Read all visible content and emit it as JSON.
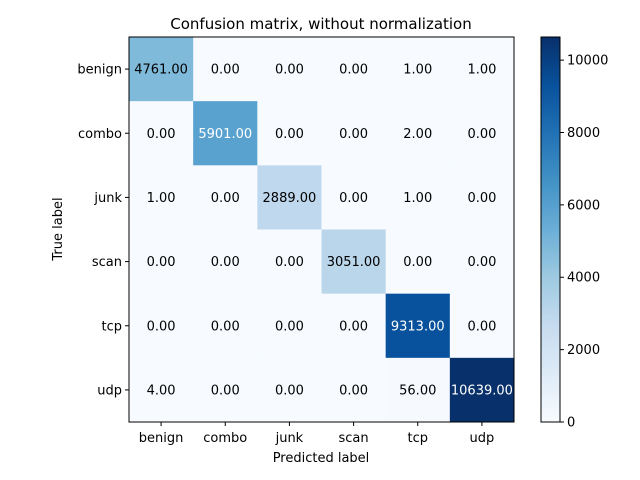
{
  "chart_data": {
    "type": "heatmap",
    "title": "Confusion matrix, without normalization",
    "xlabel": "Predicted label",
    "ylabel": "True label",
    "x_categories": [
      "benign",
      "combo",
      "junk",
      "scan",
      "tcp",
      "udp"
    ],
    "y_categories": [
      "benign",
      "combo",
      "junk",
      "scan",
      "tcp",
      "udp"
    ],
    "values": [
      [
        4761,
        0,
        0,
        0,
        1,
        1
      ],
      [
        0,
        5901,
        0,
        0,
        2,
        0
      ],
      [
        1,
        0,
        2889,
        0,
        1,
        0
      ],
      [
        0,
        0,
        0,
        3051,
        0,
        0
      ],
      [
        0,
        0,
        0,
        0,
        9313,
        0
      ],
      [
        4,
        0,
        0,
        0,
        56,
        10639
      ]
    ],
    "value_format": "2 decimals",
    "colormap": "Blues",
    "colorbar": {
      "min": 0,
      "max": 10639,
      "ticks": [
        0,
        2000,
        4000,
        6000,
        8000,
        10000
      ]
    },
    "grid": false
  }
}
